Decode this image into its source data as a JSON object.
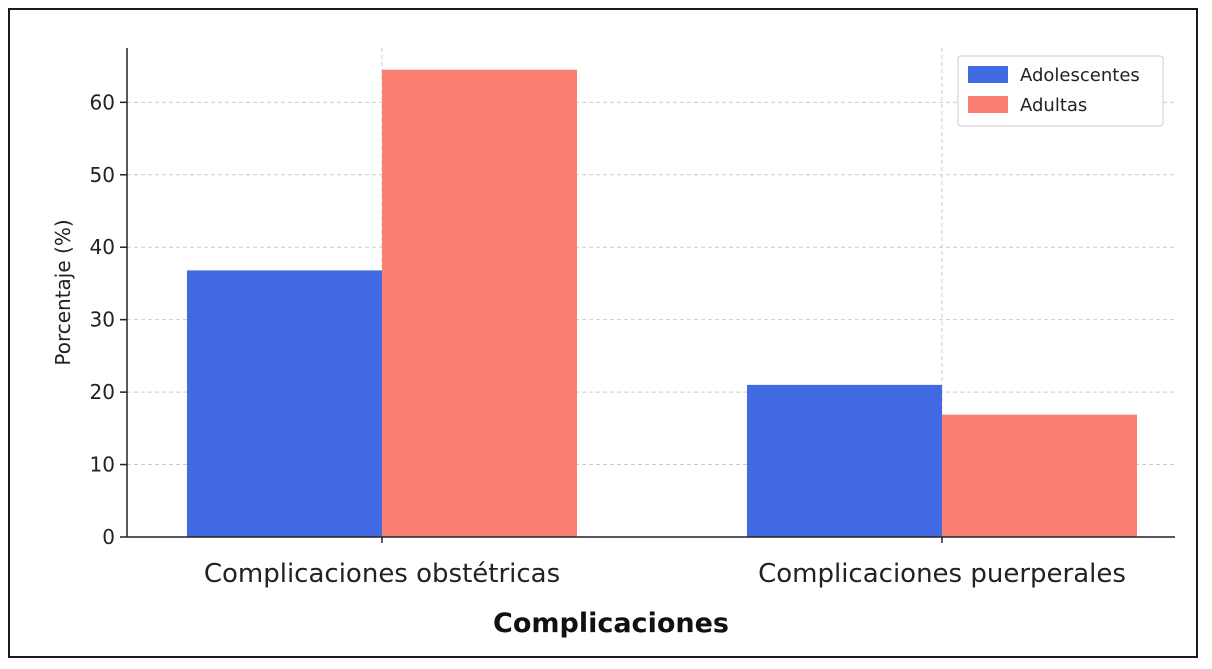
{
  "chart_data": {
    "type": "bar",
    "title": "",
    "xlabel": "Complicaciones",
    "ylabel": "Porcentaje (%)",
    "categories": [
      "Complicaciones obstétricas",
      "Complicaciones puerperales"
    ],
    "series": [
      {
        "name": "Adolescentes",
        "color": "#4169e1",
        "values": [
          36.8,
          21.0
        ]
      },
      {
        "name": "Adultas",
        "color": "#fa8072",
        "values": [
          64.5,
          16.9
        ]
      }
    ],
    "ylim": [
      0,
      67.5
    ],
    "yticks": [
      0,
      10,
      20,
      30,
      40,
      50,
      60
    ],
    "grid": true,
    "legend_position": "top-right"
  }
}
